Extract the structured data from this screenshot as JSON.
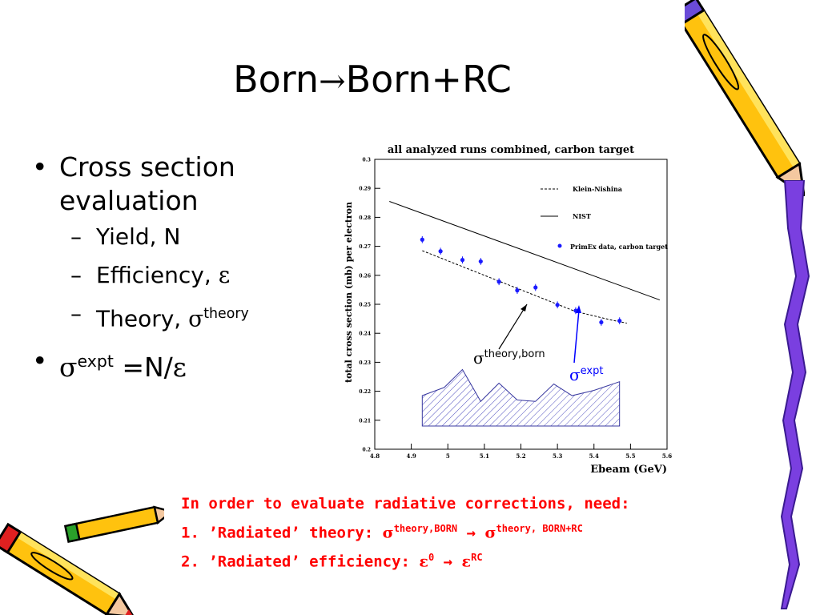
{
  "slide": {
    "title_left": "Born",
    "title_arrow": "→",
    "title_right": "Born+RC"
  },
  "bullets": {
    "b1": "Cross section evaluation",
    "sub1": "Yield, N",
    "sub2_text": "Efficiency, ",
    "sub2_sym": "ε",
    "sub3_text": "Theory, ",
    "sub3_sym": "σ",
    "sub3_sup": "theory",
    "b2_sym": "σ",
    "b2_sup": "expt",
    "b2_text": " =N/",
    "b2_eps": "ε"
  },
  "note": {
    "line1": "In order to evaluate radiative corrections, need:",
    "line2_text": "1. ’Radiated’ theory: ",
    "line2_s1": "σ",
    "line2_sup1": "theory,BORN",
    "line2_arrow": " → ",
    "line2_s2": "σ",
    "line2_sup2": "theory, BORN+RC",
    "line3_text": "2. ’Radiated’ efficiency: ",
    "line3_e1": "ε",
    "line3_sup1": "0",
    "line3_arrow": " → ",
    "line3_e2": "ε",
    "line3_sup2": "RC"
  },
  "colors": {
    "note_red": "#ff0000",
    "annotation_blue": "#0000ff",
    "data_blue": "#1a1aff",
    "hatch": "#5050c0"
  },
  "icons": [
    "pencil-icon",
    "pencil-icon",
    "crayon-icon"
  ],
  "chart_data": {
    "type": "scatter",
    "title": "all analyzed runs combined, carbon target",
    "xlabel": "Ebeam (GeV)",
    "ylabel": "total cross section (mb) per electron",
    "xlim": [
      4.8,
      5.6
    ],
    "ylim": [
      0.2,
      0.3
    ],
    "x_ticks": [
      "4.8",
      "4.9",
      "5",
      "5.1",
      "5.2",
      "5.3",
      "5.4",
      "5.5",
      "5.6"
    ],
    "y_ticks": [
      "0.2",
      "0.21",
      "0.22",
      "0.23",
      "0.24",
      "0.25",
      "0.26",
      "0.27",
      "0.28",
      "0.29",
      "0.3"
    ],
    "legend": [
      "Klein-Nishina",
      "NIST",
      "PrimEx data, carbon target"
    ],
    "legend_position": "top-right",
    "series": [
      {
        "name": "Klein-Nishina",
        "style": "dashed",
        "x": [
          4.93,
          5.05,
          5.15,
          5.25,
          5.35,
          5.45,
          5.49
        ],
        "y": [
          0.2685,
          0.2625,
          0.2575,
          0.2525,
          0.2475,
          0.2445,
          0.2435
        ]
      },
      {
        "name": "NIST",
        "style": "solid",
        "x": [
          4.84,
          5.58
        ],
        "y": [
          0.2855,
          0.2515
        ]
      },
      {
        "name": "PrimEx data, carbon target",
        "style": "points",
        "x": [
          4.93,
          4.98,
          5.04,
          5.09,
          5.14,
          5.19,
          5.24,
          5.3,
          5.35,
          5.42,
          5.47
        ],
        "y": [
          0.2723,
          0.2683,
          0.2653,
          0.2648,
          0.2578,
          0.2548,
          0.2558,
          0.2498,
          0.2478,
          0.2438,
          0.2443
        ],
        "err": [
          0.0012,
          0.0012,
          0.0012,
          0.0012,
          0.0012,
          0.0012,
          0.0012,
          0.0012,
          0.0012,
          0.0012,
          0.0012
        ]
      },
      {
        "name": "",
        "style": "hatched-area",
        "x": [
          4.93,
          4.99,
          5.04,
          5.09,
          5.14,
          5.19,
          5.24,
          5.29,
          5.34,
          5.4,
          5.47
        ],
        "y": [
          0.2185,
          0.2213,
          0.2275,
          0.2165,
          0.2228,
          0.217,
          0.2165,
          0.2225,
          0.2185,
          0.2203,
          0.2233
        ],
        "base": 0.208
      }
    ],
    "annotations": [
      {
        "label": "σ",
        "sup": "theory,born"
      },
      {
        "label": "σ",
        "sup": "expt"
      }
    ]
  }
}
